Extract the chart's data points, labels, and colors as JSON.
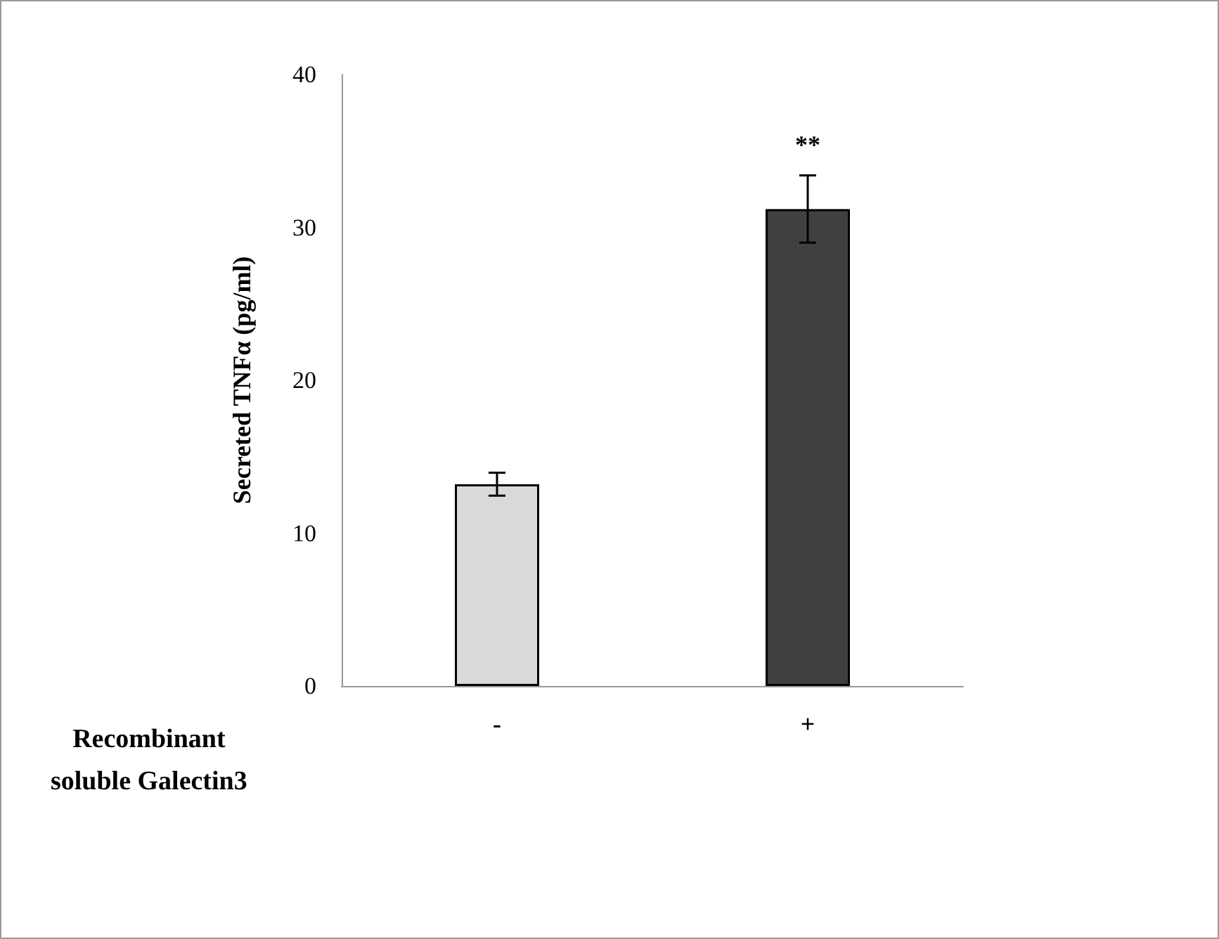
{
  "chart_data": {
    "type": "bar",
    "xlabel": "Recombinant\nsoluble Galectin3",
    "ylabel": "Secreted TNFα (pg/ml)",
    "categories": [
      "-",
      "+"
    ],
    "values": [
      13.2,
      31.2
    ],
    "colors": [
      "#d9d9d9",
      "#404040"
    ],
    "errors": [
      0.75,
      2.2
    ],
    "ylim": [
      0,
      40
    ],
    "yticks": [
      0,
      10,
      20,
      30,
      40
    ],
    "grid": false,
    "annotations": [
      "**"
    ]
  }
}
